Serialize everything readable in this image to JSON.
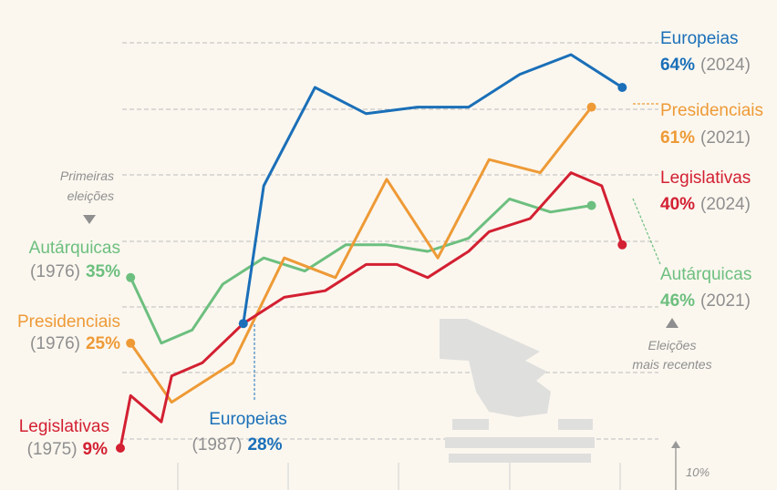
{
  "chart_data": {
    "type": "line",
    "title": "",
    "xlabel": "",
    "ylabel": "",
    "scale_label": "10%",
    "grid": true,
    "colors": {
      "Europeias": "#1a6fb8",
      "Presidenciais": "#ee9a36",
      "Legislativas": "#d32032",
      "Autárquicas": "#6dbf7f"
    },
    "series": [
      {
        "name": "Europeias",
        "x": [
          1987,
          1989,
          1994,
          1999,
          2004,
          2009,
          2014,
          2019,
          2024
        ],
        "values": [
          28,
          49,
          64,
          60,
          61,
          61,
          66,
          69,
          64
        ]
      },
      {
        "name": "Presidenciais",
        "x": [
          1976,
          1980,
          1986,
          1991,
          1996,
          2001,
          2006,
          2011,
          2016,
          2021
        ],
        "values": [
          25,
          16,
          22,
          38,
          35,
          50,
          38,
          53,
          51,
          61
        ]
      },
      {
        "name": "Legislativas",
        "x": [
          1975,
          1976,
          1979,
          1980,
          1983,
          1985,
          1987,
          1991,
          1995,
          1999,
          2002,
          2005,
          2009,
          2011,
          2015,
          2019,
          2022,
          2024
        ],
        "values": [
          9,
          17,
          13,
          20,
          22,
          25,
          28,
          32,
          33,
          37,
          37,
          35,
          39,
          42,
          44,
          51,
          49,
          40
        ]
      },
      {
        "name": "Autárquicas",
        "x": [
          1976,
          1979,
          1982,
          1985,
          1989,
          1993,
          1997,
          2001,
          2005,
          2009,
          2013,
          2017,
          2021
        ],
        "values": [
          35,
          25,
          27,
          34,
          38,
          36,
          40,
          40,
          39,
          41,
          47,
          45,
          46
        ]
      }
    ]
  },
  "annotations": {
    "first_elections": [
      "Primeiras",
      "eleições"
    ],
    "recent_elections": [
      "Eleições",
      "mais recentes"
    ]
  },
  "labels": {
    "eur_end": {
      "name": "Europeias",
      "pct": "64%",
      "year": "(2024)"
    },
    "pre_end": {
      "name": "Presidenciais",
      "pct": "61%",
      "year": "(2021)"
    },
    "leg_end": {
      "name": "Legislativas",
      "pct": "40%",
      "year": "(2024)"
    },
    "aut_end": {
      "name": "Autárquicas",
      "pct": "46%",
      "year": "(2021)"
    },
    "aut_start": {
      "name": "Autárquicas",
      "pct": "35%",
      "year": "(1976)"
    },
    "pre_start": {
      "name": "Presidenciais",
      "pct": "25%",
      "year": "(1976)"
    },
    "leg_start": {
      "name": "Legislativas",
      "pct": "9%",
      "year": "(1975)"
    },
    "eur_start": {
      "name": "Europeias",
      "pct": "28%",
      "year": "(1987)"
    }
  }
}
